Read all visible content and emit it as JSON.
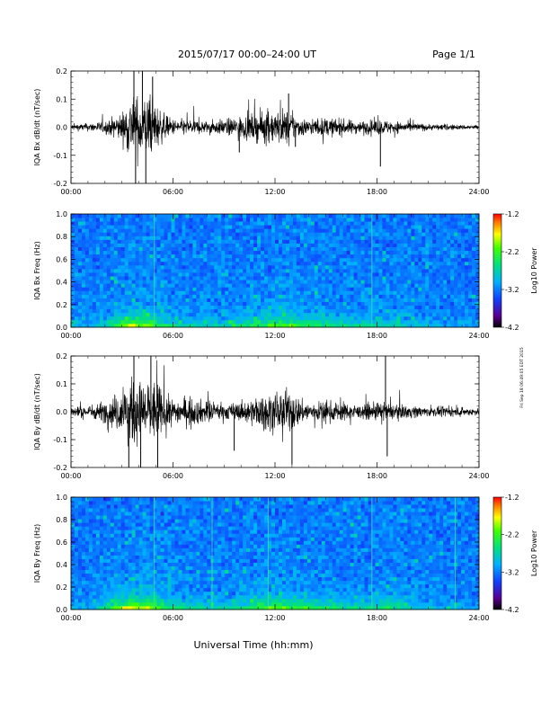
{
  "header": {
    "title": "2015/07/17  00:00–24:00 UT",
    "page": "Page 1/1"
  },
  "footer": {
    "xlabel": "Universal Time (hh:mm)"
  },
  "side_stamp": "Fri Sep 18 06:49:05 EDT 2015",
  "chart_data": [
    {
      "type": "line",
      "ylabel": "IQA Bx dB/dt (nT/sec)",
      "xlim": [
        0,
        24
      ],
      "ylim": [
        -0.2,
        0.2
      ],
      "x_ticks": [
        "00:00",
        "06:00",
        "12:00",
        "18:00",
        "24:00"
      ],
      "y_ticks": [
        "-0.2",
        "-0.1",
        "0.0",
        "0.1",
        "0.2"
      ],
      "envelope": {
        "x": [
          0,
          1,
          2,
          3,
          3.5,
          4,
          4.5,
          5,
          5.5,
          6,
          7,
          8,
          9,
          10,
          11,
          11.5,
          12,
          12.5,
          13,
          13.5,
          14,
          15,
          16,
          17,
          18,
          19,
          20,
          21,
          22,
          23,
          24
        ],
        "amp": [
          0.02,
          0.025,
          0.04,
          0.09,
          0.2,
          0.2,
          0.2,
          0.15,
          0.08,
          0.05,
          0.05,
          0.04,
          0.05,
          0.07,
          0.09,
          0.11,
          0.1,
          0.12,
          0.09,
          0.06,
          0.05,
          0.06,
          0.05,
          0.04,
          0.05,
          0.04,
          0.03,
          0.02,
          0.02,
          0.015,
          0.015
        ]
      },
      "spikes": [
        {
          "x": 3.7,
          "y": 0.2
        },
        {
          "x": 3.8,
          "y": -0.2
        },
        {
          "x": 4.2,
          "y": 0.2
        },
        {
          "x": 4.4,
          "y": -0.2
        },
        {
          "x": 4.8,
          "y": 0.18
        },
        {
          "x": 9.9,
          "y": -0.09
        },
        {
          "x": 12.8,
          "y": 0.12
        },
        {
          "x": 13.2,
          "y": -0.07
        },
        {
          "x": 18.2,
          "y": -0.14
        }
      ]
    },
    {
      "type": "heatmap",
      "ylabel": "IQA Bx Freq (Hz)",
      "xlim": [
        0,
        24
      ],
      "ylim": [
        0,
        1
      ],
      "x_ticks": [
        "00:00",
        "06:00",
        "12:00",
        "18:00",
        "24:00"
      ],
      "y_ticks": [
        "0.0",
        "0.2",
        "0.4",
        "0.6",
        "0.8",
        "1.0"
      ],
      "colorbar": {
        "label": "Log10 Power",
        "ticks": [
          "-1.2",
          "-2.2",
          "-3.2",
          "-4.2"
        ],
        "range": [
          -4.2,
          -1.2
        ]
      },
      "activity": {
        "x": [
          0,
          1,
          2,
          3,
          3.5,
          4,
          4.5,
          5,
          6,
          7,
          8,
          9,
          10,
          11,
          12,
          13,
          14,
          15,
          16,
          17,
          18,
          19,
          20,
          21,
          22,
          23,
          24
        ],
        "level": [
          0.1,
          0.15,
          0.35,
          0.7,
          0.95,
          0.8,
          0.9,
          0.55,
          0.4,
          0.3,
          0.3,
          0.35,
          0.45,
          0.6,
          0.65,
          0.7,
          0.55,
          0.45,
          0.4,
          0.35,
          0.35,
          0.3,
          0.25,
          0.2,
          0.15,
          0.12,
          0.1
        ]
      },
      "lines": [
        4.9,
        17.7
      ]
    },
    {
      "type": "line",
      "ylabel": "IQA By dB/dt (nT/sec)",
      "xlim": [
        0,
        24
      ],
      "ylim": [
        -0.2,
        0.2
      ],
      "x_ticks": [
        "00:00",
        "06:00",
        "12:00",
        "18:00",
        "24:00"
      ],
      "y_ticks": [
        "-0.2",
        "-0.1",
        "0.0",
        "0.1",
        "0.2"
      ],
      "envelope": {
        "x": [
          0,
          1,
          2,
          3,
          3.5,
          4,
          4.5,
          5,
          5.5,
          6,
          7,
          8,
          9,
          10,
          11,
          11.5,
          12,
          12.5,
          13,
          13.5,
          14,
          15,
          16,
          17,
          18,
          19,
          20,
          21,
          22,
          23,
          24
        ],
        "amp": [
          0.03,
          0.04,
          0.07,
          0.14,
          0.2,
          0.2,
          0.2,
          0.2,
          0.12,
          0.08,
          0.09,
          0.07,
          0.05,
          0.06,
          0.1,
          0.12,
          0.12,
          0.14,
          0.13,
          0.08,
          0.06,
          0.07,
          0.06,
          0.04,
          0.06,
          0.05,
          0.04,
          0.03,
          0.03,
          0.025,
          0.025
        ]
      },
      "spikes": [
        {
          "x": 3.4,
          "y": -0.2
        },
        {
          "x": 3.7,
          "y": 0.2
        },
        {
          "x": 4.1,
          "y": -0.2
        },
        {
          "x": 4.7,
          "y": 0.2
        },
        {
          "x": 5.1,
          "y": -0.2
        },
        {
          "x": 9.6,
          "y": -0.14
        },
        {
          "x": 13.0,
          "y": -0.19
        },
        {
          "x": 18.5,
          "y": 0.2
        },
        {
          "x": 18.6,
          "y": -0.16
        }
      ]
    },
    {
      "type": "heatmap",
      "ylabel": "IQA By Freq (Hz)",
      "xlim": [
        0,
        24
      ],
      "ylim": [
        0,
        1
      ],
      "x_ticks": [
        "00:00",
        "06:00",
        "12:00",
        "18:00",
        "24:00"
      ],
      "y_ticks": [
        "0.0",
        "0.2",
        "0.4",
        "0.6",
        "0.8",
        "1.0"
      ],
      "colorbar": {
        "label": "Log10 Power",
        "ticks": [
          "-1.2",
          "-2.2",
          "-3.2",
          "-4.2"
        ],
        "range": [
          -4.2,
          -1.2
        ]
      },
      "activity": {
        "x": [
          0,
          1,
          2,
          3,
          3.5,
          4,
          4.5,
          5,
          6,
          7,
          8,
          9,
          10,
          11,
          12,
          13,
          14,
          15,
          16,
          17,
          18,
          19,
          20,
          21,
          22,
          23,
          24
        ],
        "level": [
          0.15,
          0.2,
          0.45,
          0.8,
          1.0,
          0.85,
          0.95,
          0.7,
          0.5,
          0.4,
          0.35,
          0.35,
          0.45,
          0.65,
          0.7,
          0.7,
          0.55,
          0.5,
          0.45,
          0.4,
          0.45,
          0.5,
          0.35,
          0.25,
          0.2,
          0.15,
          0.12
        ]
      },
      "lines": [
        4.9,
        8.3,
        11.6,
        17.7,
        22.6
      ]
    }
  ]
}
